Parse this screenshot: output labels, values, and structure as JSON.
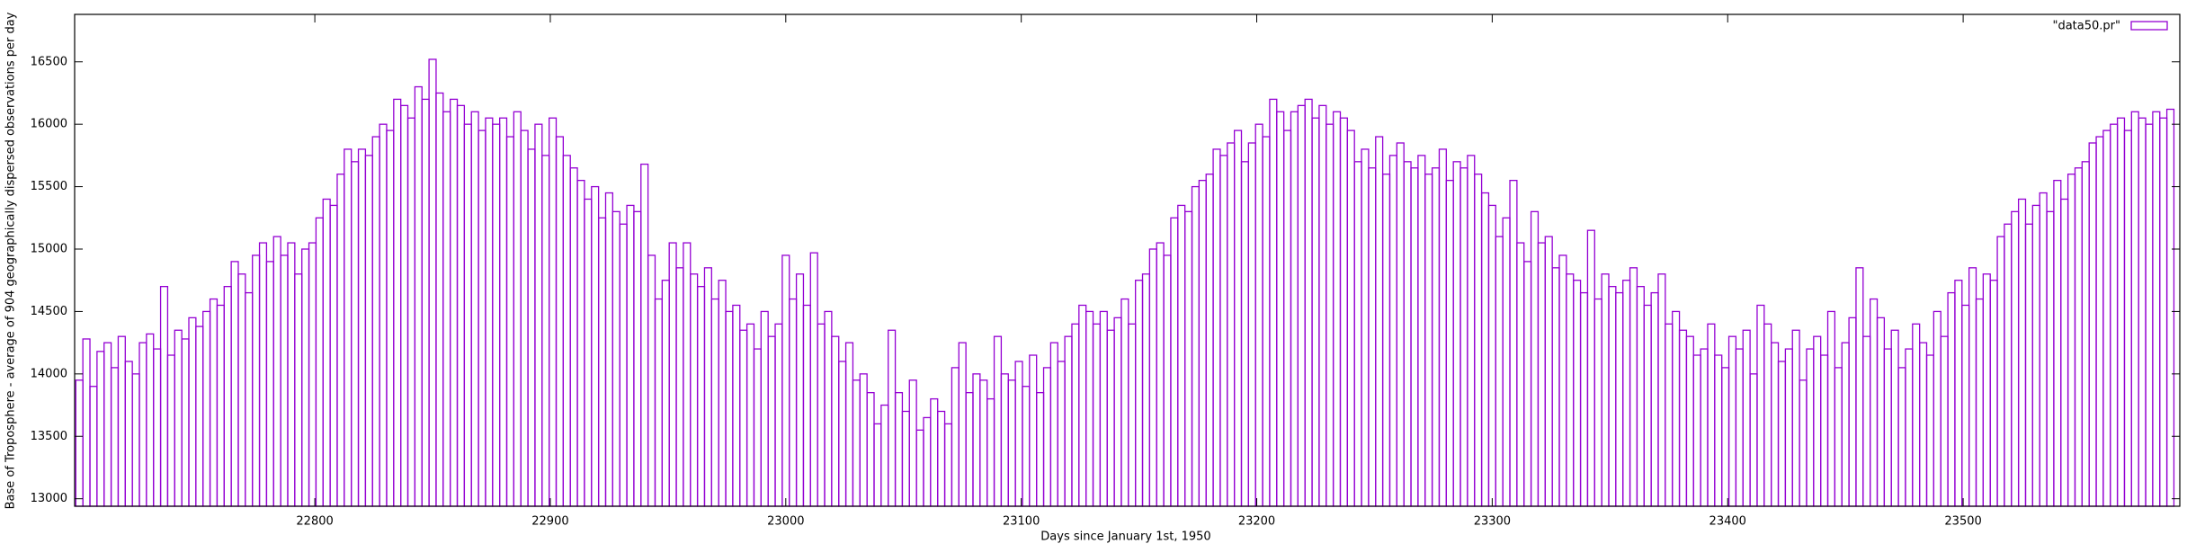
{
  "chart_data": {
    "type": "bar",
    "x_label": "Days since January 1st, 1950",
    "y_label": "Base of Troposphere - average of 904 geographically dispersed observations per day",
    "legend_position": "top-right",
    "grid": false,
    "series": [
      {
        "name": "\"data50.pr\"",
        "color": "#9400d3",
        "x": [
          22700,
          22703,
          22706,
          22709,
          22712,
          22715,
          22718,
          22721,
          22724,
          22727,
          22730,
          22733,
          22736,
          22739,
          22742,
          22745,
          22748,
          22751,
          22754,
          22757,
          22760,
          22763,
          22766,
          22769,
          22772,
          22775,
          22778,
          22781,
          22784,
          22787,
          22790,
          22793,
          22796,
          22799,
          22802,
          22805,
          22808,
          22811,
          22814,
          22817,
          22820,
          22823,
          22826,
          22829,
          22832,
          22835,
          22838,
          22841,
          22844,
          22847,
          22850,
          22853,
          22856,
          22859,
          22862,
          22865,
          22868,
          22871,
          22874,
          22877,
          22880,
          22883,
          22886,
          22889,
          22892,
          22895,
          22898,
          22901,
          22904,
          22907,
          22910,
          22913,
          22916,
          22919,
          22922,
          22925,
          22928,
          22931,
          22934,
          22937,
          22940,
          22943,
          22946,
          22949,
          22952,
          22955,
          22958,
          22961,
          22964,
          22967,
          22970,
          22973,
          22976,
          22979,
          22982,
          22985,
          22988,
          22991,
          22994,
          22997,
          23000,
          23003,
          23006,
          23009,
          23012,
          23015,
          23018,
          23021,
          23024,
          23027,
          23030,
          23033,
          23036,
          23039,
          23042,
          23045,
          23048,
          23051,
          23054,
          23057,
          23060,
          23063,
          23066,
          23069,
          23072,
          23075,
          23078,
          23081,
          23084,
          23087,
          23090,
          23093,
          23096,
          23099,
          23102,
          23105,
          23108,
          23111,
          23114,
          23117,
          23120,
          23123,
          23126,
          23129,
          23132,
          23135,
          23138,
          23141,
          23144,
          23147,
          23150,
          23153,
          23156,
          23159,
          23162,
          23165,
          23168,
          23171,
          23174,
          23177,
          23180,
          23183,
          23186,
          23189,
          23192,
          23195,
          23198,
          23201,
          23204,
          23207,
          23210,
          23213,
          23216,
          23219,
          23222,
          23225,
          23228,
          23231,
          23234,
          23237,
          23240,
          23243,
          23246,
          23249,
          23252,
          23255,
          23258,
          23261,
          23264,
          23267,
          23270,
          23273,
          23276,
          23279,
          23282,
          23285,
          23288,
          23291,
          23294,
          23297,
          23300,
          23303,
          23306,
          23309,
          23312,
          23315,
          23318,
          23321,
          23324,
          23327,
          23330,
          23333,
          23336,
          23339,
          23342,
          23345,
          23348,
          23351,
          23354,
          23357,
          23360,
          23363,
          23366,
          23369,
          23372,
          23375,
          23378,
          23381,
          23384,
          23387,
          23390,
          23393,
          23396,
          23399,
          23402,
          23405,
          23408,
          23411,
          23414,
          23417,
          23420,
          23423,
          23426,
          23429,
          23432,
          23435,
          23438,
          23441,
          23444,
          23447,
          23450,
          23453,
          23456,
          23459,
          23462,
          23465,
          23468,
          23471,
          23474,
          23477,
          23480,
          23483,
          23486,
          23489,
          23492,
          23495,
          23498,
          23501,
          23504,
          23507,
          23510,
          23513,
          23516,
          23519,
          23522,
          23525,
          23528,
          23531,
          23534,
          23537,
          23540,
          23543,
          23546,
          23549,
          23552,
          23555,
          23558,
          23561,
          23564,
          23567,
          23570,
          23573,
          23576,
          23579,
          23582,
          23585,
          23588
        ],
        "values": [
          13950,
          14280,
          13900,
          14180,
          14250,
          14050,
          14300,
          14100,
          14000,
          14250,
          14320,
          14200,
          14700,
          14150,
          14350,
          14280,
          14450,
          14380,
          14500,
          14600,
          14550,
          14700,
          14900,
          14800,
          14650,
          14950,
          15050,
          14900,
          15100,
          14950,
          15050,
          14800,
          15000,
          15050,
          15250,
          15400,
          15350,
          15600,
          15800,
          15700,
          15800,
          15750,
          15900,
          16000,
          15950,
          16200,
          16150,
          16050,
          16300,
          16200,
          16520,
          16250,
          16100,
          16200,
          16150,
          16000,
          16100,
          15950,
          16050,
          16000,
          16050,
          15900,
          16100,
          15950,
          15800,
          16000,
          15750,
          16050,
          15900,
          15750,
          15650,
          15550,
          15400,
          15500,
          15250,
          15450,
          15300,
          15200,
          15350,
          15300,
          15680,
          14950,
          14600,
          14750,
          15050,
          14850,
          15050,
          14800,
          14700,
          14850,
          14600,
          14750,
          14500,
          14550,
          14350,
          14400,
          14200,
          14500,
          14300,
          14400,
          14950,
          14600,
          14800,
          14550,
          14970,
          14400,
          14500,
          14300,
          14100,
          14250,
          13950,
          14000,
          13850,
          13600,
          13750,
          14350,
          13850,
          13700,
          13950,
          13550,
          13650,
          13800,
          13700,
          13600,
          14050,
          14250,
          13850,
          14000,
          13950,
          13800,
          14300,
          14000,
          13950,
          14100,
          13900,
          14150,
          13850,
          14050,
          14250,
          14100,
          14300,
          14400,
          14550,
          14500,
          14400,
          14500,
          14350,
          14450,
          14600,
          14400,
          14750,
          14800,
          15000,
          15050,
          14950,
          15250,
          15350,
          15300,
          15500,
          15550,
          15600,
          15800,
          15750,
          15850,
          15950,
          15700,
          15850,
          16000,
          15900,
          16200,
          16100,
          15950,
          16100,
          16150,
          16200,
          16050,
          16150,
          16000,
          16100,
          16050,
          15950,
          15700,
          15800,
          15650,
          15900,
          15600,
          15750,
          15850,
          15700,
          15650,
          15750,
          15600,
          15650,
          15800,
          15550,
          15700,
          15650,
          15750,
          15600,
          15450,
          15350,
          15100,
          15250,
          15550,
          15050,
          14900,
          15300,
          15050,
          15100,
          14850,
          14950,
          14800,
          14750,
          14650,
          15150,
          14600,
          14800,
          14700,
          14650,
          14750,
          14850,
          14700,
          14550,
          14650,
          14800,
          14400,
          14500,
          14350,
          14300,
          14150,
          14200,
          14400,
          14150,
          14050,
          14300,
          14200,
          14350,
          14000,
          14550,
          14400,
          14250,
          14100,
          14200,
          14350,
          13950,
          14200,
          14300,
          14150,
          14500,
          14050,
          14250,
          14450,
          14850,
          14300,
          14600,
          14450,
          14200,
          14350,
          14050,
          14200,
          14400,
          14250,
          14150,
          14500,
          14300,
          14650,
          14750,
          14550,
          14850,
          14600,
          14800,
          14750,
          15100,
          15200,
          15300,
          15400,
          15200,
          15350,
          15450,
          15300,
          15550,
          15400,
          15600,
          15650,
          15700,
          15850,
          15900,
          15950,
          16000,
          16050,
          15950,
          16100,
          16050,
          16000,
          16100,
          16050,
          16120
        ]
      }
    ],
    "xlim": [
      22698,
      23592
    ],
    "xticks": [
      22800,
      22900,
      23000,
      23100,
      23200,
      23300,
      23400,
      23500
    ],
    "ylim": [
      12940,
      16880
    ],
    "yticks": [
      13000,
      13500,
      14000,
      14500,
      15000,
      15500,
      16000,
      16500
    ]
  }
}
